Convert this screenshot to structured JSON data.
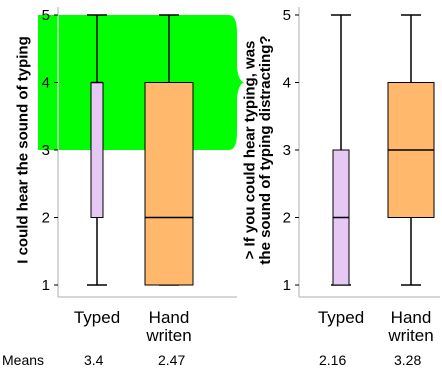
{
  "chart_data": [
    {
      "type": "box",
      "ylabel": "I could hear the sound of typing",
      "ylim": [
        1,
        5
      ],
      "yticks": [
        1,
        2,
        3,
        4,
        5
      ],
      "categories": [
        "Typed",
        "Hand\nwriten"
      ],
      "series": [
        {
          "category": "Typed",
          "min": 1,
          "q1": 2,
          "median": 4,
          "q3": 4,
          "max": 5,
          "color": "#e6c8f5"
        },
        {
          "category": "Hand\nwriten",
          "min": 1,
          "q1": 1,
          "median": 2,
          "q3": 4,
          "max": 5,
          "color": "#ffb86c"
        }
      ],
      "highlight": {
        "from": 3,
        "to": 5,
        "color": "#00ff00"
      },
      "means": [
        "3.4",
        "2.47"
      ]
    },
    {
      "type": "box",
      "ylabel": "> If you could hear typing, was\nthe sound of typing distracting?",
      "ylim": [
        1,
        5
      ],
      "yticks": [
        1,
        2,
        3,
        4,
        5
      ],
      "categories": [
        "Typed",
        "Hand\nwriten"
      ],
      "series": [
        {
          "category": "Typed",
          "min": 1,
          "q1": 1,
          "median": 2,
          "q3": 3,
          "max": 5,
          "color": "#e6c8f5"
        },
        {
          "category": "Hand\nwriten",
          "min": 1,
          "q1": 2,
          "median": 3,
          "q3": 4,
          "max": 5,
          "color": "#ffb86c"
        }
      ],
      "means": [
        "2.16",
        "3.28"
      ]
    }
  ],
  "means_label": "Means"
}
